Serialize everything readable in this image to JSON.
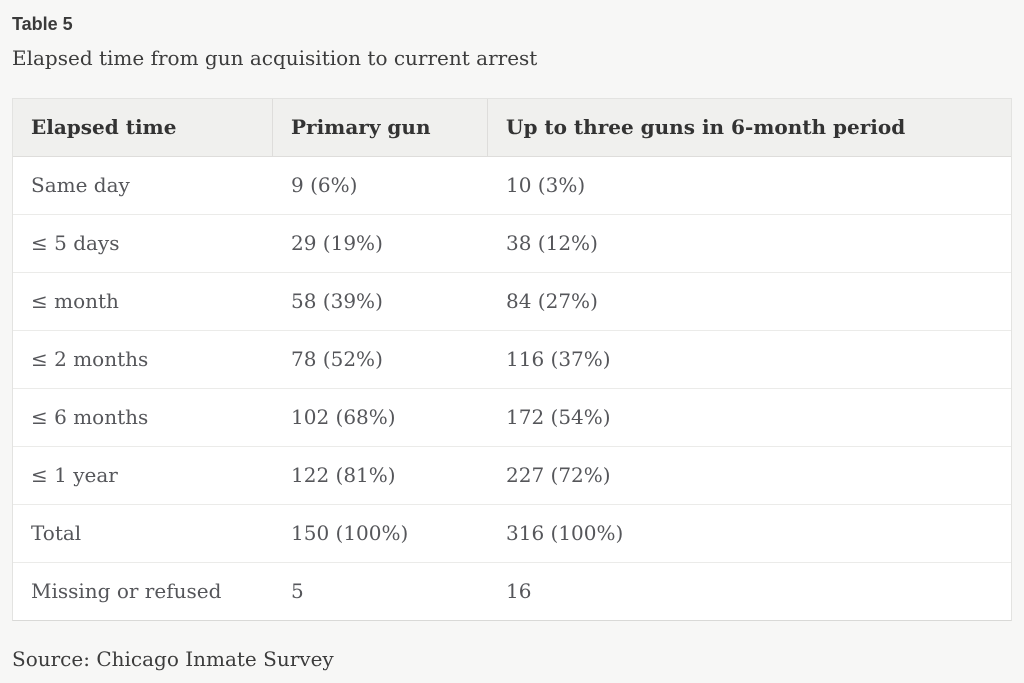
{
  "page": {
    "background_color": "#f7f7f6",
    "header_bg_color": "#f0f0ee",
    "body_bg_color": "#ffffff",
    "border_color": "#e3e3e1",
    "body_text_color": "#55565a",
    "heading_text_color": "#333333"
  },
  "title": "Table 5",
  "subtitle": "Elapsed time from gun acquisition to current arrest",
  "table": {
    "columns": [
      {
        "label": "Elapsed time"
      },
      {
        "label": "Primary gun"
      },
      {
        "label": "Up to three guns in 6-month period"
      }
    ],
    "rows": [
      {
        "elapsed_time": "Same day",
        "primary_gun": "9 (6%)",
        "three_guns": "10 (3%)"
      },
      {
        "elapsed_time": "≤ 5 days",
        "primary_gun": "29 (19%)",
        "three_guns": "38 (12%)"
      },
      {
        "elapsed_time": "≤ month",
        "primary_gun": "58 (39%)",
        "three_guns": "84 (27%)"
      },
      {
        "elapsed_time": "≤ 2 months",
        "primary_gun": "78 (52%)",
        "three_guns": "116 (37%)"
      },
      {
        "elapsed_time": "≤ 6 months",
        "primary_gun": "102 (68%)",
        "three_guns": "172 (54%)"
      },
      {
        "elapsed_time": "≤ 1 year",
        "primary_gun": "122 (81%)",
        "three_guns": "227 (72%)"
      },
      {
        "elapsed_time": "Total",
        "primary_gun": "150 (100%)",
        "three_guns": "316 (100%)"
      },
      {
        "elapsed_time": "Missing or refused",
        "primary_gun": "5",
        "three_guns": "16"
      }
    ]
  },
  "source": "Source: Chicago Inmate Survey"
}
